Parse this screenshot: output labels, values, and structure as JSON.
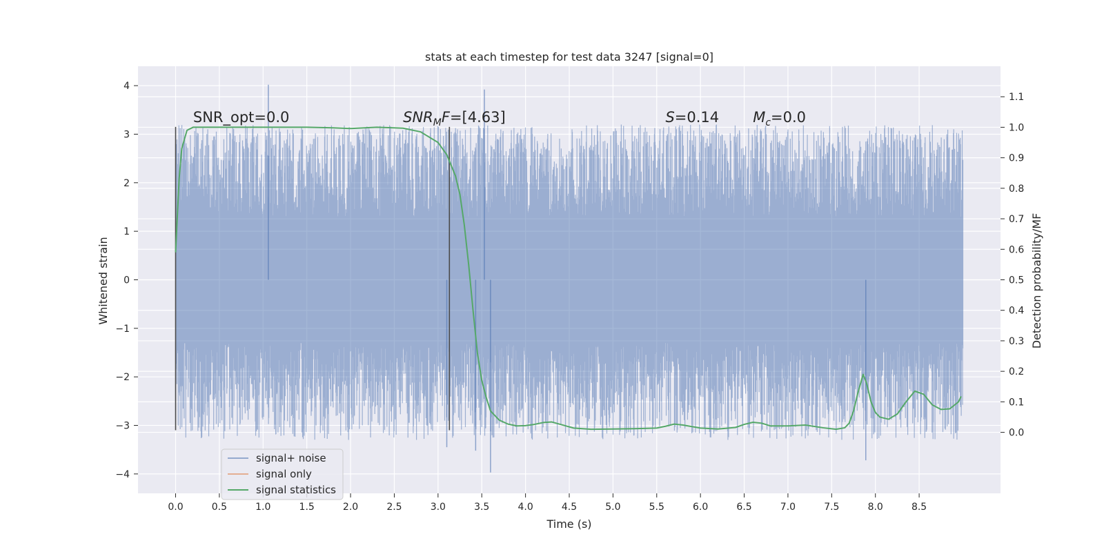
{
  "chart_data": {
    "type": "line",
    "title": "stats at each timestep for test data 3247 [signal=0]",
    "xlabel": "Time (s)",
    "ylabel_left": "Whitened strain",
    "ylabel_right": "Detection probability/MF",
    "xlim": [
      -0.43,
      9.43
    ],
    "ylim_left": [
      -4.4,
      4.4
    ],
    "ylim_right": [
      -0.2,
      1.2
    ],
    "xticks": [
      "0.0",
      "0.5",
      "1.0",
      "1.5",
      "2.0",
      "2.5",
      "3.0",
      "3.5",
      "4.0",
      "4.5",
      "5.0",
      "5.5",
      "6.0",
      "6.5",
      "7.0",
      "7.5",
      "8.0",
      "8.5"
    ],
    "xtick_values": [
      0.0,
      0.5,
      1.0,
      1.5,
      2.0,
      2.5,
      3.0,
      3.5,
      4.0,
      4.5,
      5.0,
      5.5,
      6.0,
      6.5,
      7.0,
      7.5,
      8.0,
      8.5
    ],
    "yticks_left": [
      "4",
      "3",
      "2",
      "1",
      "0",
      "−1",
      "−2",
      "−3",
      "−4"
    ],
    "ytick_values_left": [
      4,
      3,
      2,
      1,
      0,
      -1,
      -2,
      -3,
      -4
    ],
    "yticks_right": [
      "1.1",
      "1.0",
      "0.9",
      "0.8",
      "0.7",
      "0.6",
      "0.5",
      "0.4",
      "0.3",
      "0.2",
      "0.1",
      "0.0"
    ],
    "ytick_values_right": [
      1.1,
      1.0,
      0.9,
      0.8,
      0.7,
      0.6,
      0.5,
      0.4,
      0.3,
      0.2,
      0.1,
      0.0
    ],
    "grid": true,
    "legend_placement": "lower-left",
    "colors": {
      "noise": "#4c72b0",
      "signal_only": "#dd8452",
      "statistics": "#55a868",
      "marker_line": "#4a4a4a",
      "plot_bg": "#eaeaf2",
      "grid": "#ffffff"
    },
    "series": [
      {
        "name": "signal+ noise",
        "axis": "left",
        "t_range": [
          0.0,
          9.0
        ],
        "band_bounds": [
          -1.3,
          1.3
        ],
        "typical_peak_range": [
          -3.3,
          3.2
        ],
        "extreme_values": [
          {
            "t": 1.06,
            "y": 4.02
          },
          {
            "t": 3.53,
            "y": 3.92
          },
          {
            "t": 3.6,
            "y": -3.97
          },
          {
            "t": 7.89,
            "y": -3.72
          },
          {
            "t": 3.43,
            "y": -3.52
          },
          {
            "t": 3.1,
            "y": -3.45
          }
        ]
      },
      {
        "name": "signal only",
        "axis": "left",
        "points": []
      },
      {
        "name": "signal statistics",
        "axis": "right",
        "points": [
          [
            0.0,
            0.59
          ],
          [
            0.04,
            0.83
          ],
          [
            0.07,
            0.93
          ],
          [
            0.13,
            0.99
          ],
          [
            0.2,
            1.0
          ],
          [
            0.5,
            1.0
          ],
          [
            1.0,
            1.0
          ],
          [
            1.5,
            1.0
          ],
          [
            1.8,
            0.998
          ],
          [
            2.0,
            0.996
          ],
          [
            2.3,
            1.0
          ],
          [
            2.6,
            0.997
          ],
          [
            2.8,
            0.985
          ],
          [
            3.0,
            0.95
          ],
          [
            3.1,
            0.91
          ],
          [
            3.2,
            0.84
          ],
          [
            3.25,
            0.78
          ],
          [
            3.3,
            0.68
          ],
          [
            3.35,
            0.55
          ],
          [
            3.4,
            0.4
          ],
          [
            3.45,
            0.26
          ],
          [
            3.5,
            0.17
          ],
          [
            3.55,
            0.115
          ],
          [
            3.6,
            0.07
          ],
          [
            3.7,
            0.04
          ],
          [
            3.8,
            0.027
          ],
          [
            3.9,
            0.021
          ],
          [
            4.0,
            0.022
          ],
          [
            4.1,
            0.026
          ],
          [
            4.2,
            0.032
          ],
          [
            4.3,
            0.034
          ],
          [
            4.4,
            0.026
          ],
          [
            4.55,
            0.014
          ],
          [
            4.75,
            0.01
          ],
          [
            5.0,
            0.011
          ],
          [
            5.25,
            0.012
          ],
          [
            5.5,
            0.014
          ],
          [
            5.6,
            0.02
          ],
          [
            5.7,
            0.027
          ],
          [
            5.8,
            0.024
          ],
          [
            6.0,
            0.014
          ],
          [
            6.2,
            0.011
          ],
          [
            6.4,
            0.016
          ],
          [
            6.5,
            0.026
          ],
          [
            6.6,
            0.033
          ],
          [
            6.7,
            0.03
          ],
          [
            6.8,
            0.021
          ],
          [
            7.0,
            0.021
          ],
          [
            7.2,
            0.024
          ],
          [
            7.4,
            0.015
          ],
          [
            7.55,
            0.01
          ],
          [
            7.65,
            0.015
          ],
          [
            7.7,
            0.03
          ],
          [
            7.75,
            0.07
          ],
          [
            7.8,
            0.13
          ],
          [
            7.86,
            0.19
          ],
          [
            7.9,
            0.16
          ],
          [
            7.95,
            0.1
          ],
          [
            8.0,
            0.065
          ],
          [
            8.05,
            0.05
          ],
          [
            8.15,
            0.043
          ],
          [
            8.25,
            0.06
          ],
          [
            8.35,
            0.1
          ],
          [
            8.45,
            0.135
          ],
          [
            8.55,
            0.125
          ],
          [
            8.65,
            0.09
          ],
          [
            8.75,
            0.075
          ],
          [
            8.85,
            0.077
          ],
          [
            8.95,
            0.1
          ],
          [
            8.98,
            0.118
          ]
        ]
      }
    ],
    "marker_lines": [
      {
        "t": 0.0,
        "y_range": [
          -3.1,
          3.15
        ]
      },
      {
        "t": 3.13,
        "y_range": [
          -3.1,
          3.15
        ]
      }
    ],
    "annotations": [
      {
        "text": "SNR_opt=0.0",
        "t": 0.2,
        "y": 3.25
      },
      {
        "text": "SNR_MF=[4.63]",
        "t": 2.6,
        "y": 3.25
      },
      {
        "text": "S=0.14",
        "t": 5.6,
        "y": 3.25
      },
      {
        "text": "M_c=0.0",
        "t": 6.6,
        "y": 3.25
      }
    ]
  }
}
